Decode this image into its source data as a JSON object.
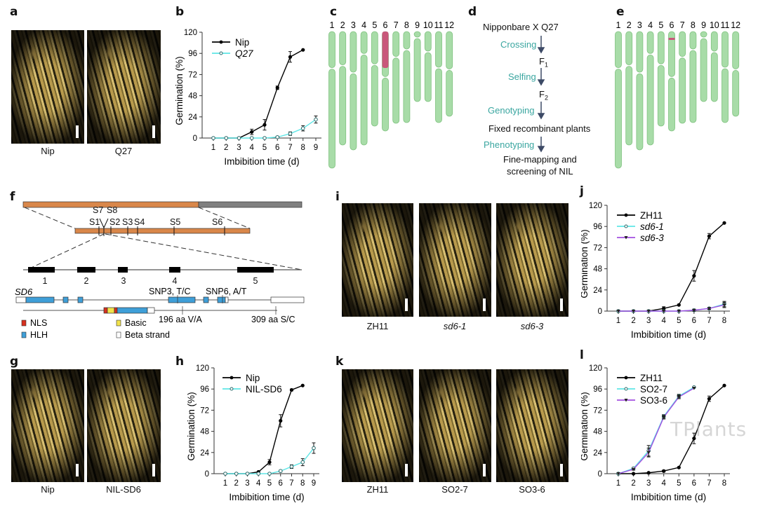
{
  "panels": {
    "a": "a",
    "b": "b",
    "c": "c",
    "d": "d",
    "e": "e",
    "f": "f",
    "g": "g",
    "h": "h",
    "i": "i",
    "j": "j",
    "k": "k",
    "l": "l"
  },
  "photos": {
    "a": [
      "Nip",
      "Q27"
    ],
    "i": [
      "ZH11",
      "sd6-1",
      "sd6-3"
    ],
    "g": [
      "Nip",
      "NIL-SD6"
    ],
    "k": [
      "ZH11",
      "SO2-7",
      "SO3-6"
    ]
  },
  "chromosomes": [
    "1",
    "2",
    "3",
    "4",
    "5",
    "6",
    "7",
    "8",
    "9",
    "10",
    "11",
    "12"
  ],
  "flow": {
    "cross": "Nipponbare  X   Q27",
    "step1": "Crossing",
    "f1": "F",
    "f1_sub": "1",
    "step2": "Selfing",
    "f2": "F",
    "f2_sub": "2",
    "step3": "Genotyping",
    "fixed": "Fixed recombinant plants",
    "step4": "Phenotyping",
    "final1": "Fine-mapping and",
    "final2": "screening of NIL"
  },
  "gene": {
    "markers": [
      "S1",
      "S7",
      "S8",
      "S2",
      "S3",
      "S4",
      "S5",
      "S6"
    ],
    "exons": [
      "1",
      "2",
      "3",
      "4",
      "5"
    ],
    "gene_name": "SD6",
    "snp3": "SNP3, T/C",
    "snp6": "SNP6, A/T",
    "aa196": "196 aa V/A",
    "aa309": "309 aa S/C",
    "legend": [
      {
        "label": "NLS",
        "color": "#d7301f"
      },
      {
        "label": "Basic",
        "color": "#f2e34c"
      },
      {
        "label": "HLH",
        "color": "#3f9fd8"
      },
      {
        "label": "Beta strand",
        "color": "#ffffff"
      }
    ],
    "colors": {
      "orange": "#d9874a",
      "gray": "#808080",
      "exon": "#000000"
    }
  },
  "watermark": "TPlants",
  "chart_data": [
    {
      "id": "b",
      "type": "line",
      "xlabel": "Imbibition time (d)",
      "ylabel": "Germination (%)",
      "ylim": [
        0,
        120
      ],
      "yticks": [
        0,
        24,
        48,
        72,
        96,
        120
      ],
      "x": [
        1,
        2,
        3,
        4,
        5,
        6,
        7,
        8,
        9
      ],
      "series": [
        {
          "name": "Nip",
          "italic": false,
          "color": "#000000",
          "marker": "filled",
          "values": [
            0,
            0,
            0,
            7,
            15,
            57,
            92,
            100,
            null
          ],
          "err": [
            0,
            0,
            0,
            3,
            6,
            2,
            6,
            0,
            null
          ]
        },
        {
          "name": "Q27",
          "italic": true,
          "color": "#5ee6e6",
          "marker": "open",
          "values": [
            0,
            0,
            0,
            0,
            0,
            1,
            5,
            11,
            21
          ],
          "err": [
            0,
            0,
            0,
            0,
            0,
            1,
            2,
            3,
            4
          ]
        }
      ],
      "legend": "top-left"
    },
    {
      "id": "j",
      "type": "line",
      "xlabel": "Imbibition time (d)",
      "ylabel": "Germination (%)",
      "ylim": [
        0,
        120
      ],
      "yticks": [
        0,
        24,
        48,
        72,
        96,
        120
      ],
      "x": [
        1,
        2,
        3,
        4,
        5,
        6,
        7,
        8
      ],
      "series": [
        {
          "name": "ZH11",
          "italic": false,
          "color": "#000000",
          "marker": "filled",
          "values": [
            0,
            0,
            0,
            3,
            7,
            40,
            85,
            100
          ],
          "err": [
            0,
            0,
            0,
            2,
            0,
            6,
            3,
            0
          ]
        },
        {
          "name": "sd6-1",
          "italic": true,
          "color": "#5ee6e6",
          "marker": "open",
          "values": [
            0,
            0,
            0,
            0,
            0,
            1,
            3,
            8
          ],
          "err": [
            0,
            0,
            0,
            0,
            0,
            1,
            1,
            3
          ]
        },
        {
          "name": "sd6-3",
          "italic": true,
          "color": "#a24fe0",
          "marker": "triangle",
          "values": [
            0,
            0,
            0,
            0,
            0,
            1,
            3,
            7
          ],
          "err": [
            0,
            0,
            0,
            0,
            0,
            1,
            1,
            3
          ]
        }
      ],
      "legend": "top-left"
    },
    {
      "id": "h",
      "type": "line",
      "xlabel": "Imbibition time (d)",
      "ylabel": "Germination (%)",
      "ylim": [
        0,
        120
      ],
      "yticks": [
        0,
        24,
        48,
        72,
        96,
        120
      ],
      "x": [
        1,
        2,
        3,
        4,
        5,
        6,
        7,
        8,
        9
      ],
      "series": [
        {
          "name": "Nip",
          "italic": false,
          "color": "#000000",
          "marker": "filled",
          "values": [
            0,
            0,
            0,
            2,
            13,
            60,
            95,
            100,
            null
          ],
          "err": [
            0,
            0,
            0,
            0,
            3,
            7,
            1,
            0,
            null
          ]
        },
        {
          "name": "NIL-SD6",
          "italic": false,
          "color": "#5ee6e6",
          "marker": "open",
          "values": [
            0,
            0,
            0,
            0,
            0,
            3,
            8,
            13,
            29
          ],
          "err": [
            0,
            0,
            0,
            0,
            0,
            1,
            2,
            4,
            6
          ]
        }
      ],
      "legend": "top-left"
    },
    {
      "id": "l",
      "type": "line",
      "xlabel": "Imbibition time (d)",
      "ylabel": "Germination (%)",
      "ylim": [
        0,
        120
      ],
      "yticks": [
        0,
        24,
        48,
        72,
        96,
        120
      ],
      "x": [
        1,
        2,
        3,
        4,
        5,
        6,
        7,
        8
      ],
      "series": [
        {
          "name": "ZH11",
          "italic": false,
          "color": "#000000",
          "marker": "filled",
          "values": [
            0,
            0,
            1,
            3,
            7,
            40,
            85,
            100
          ],
          "err": [
            0,
            0,
            0,
            1,
            0,
            6,
            3,
            0
          ]
        },
        {
          "name": "SO2-7",
          "italic": false,
          "color": "#5ee6e6",
          "marker": "open",
          "values": [
            0,
            6,
            26,
            65,
            88,
            98,
            null,
            null
          ],
          "err": [
            0,
            1,
            6,
            2,
            2,
            0,
            null,
            null
          ]
        },
        {
          "name": "SO3-6",
          "italic": false,
          "color": "#a24fe0",
          "marker": "triangle",
          "values": [
            0,
            5,
            24,
            64,
            87,
            97,
            null,
            null
          ],
          "err": [
            0,
            1,
            5,
            2,
            2,
            0,
            null,
            null
          ]
        }
      ],
      "legend": "top-left"
    }
  ]
}
